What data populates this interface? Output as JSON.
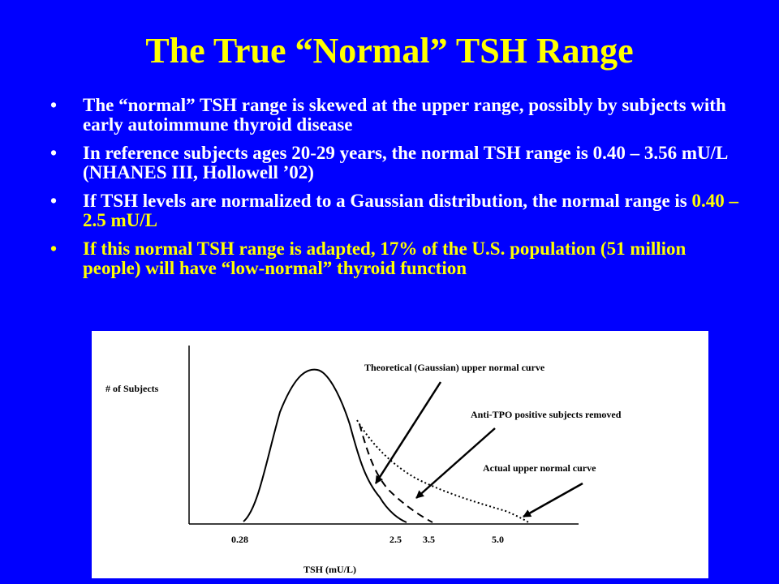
{
  "slide": {
    "title": "The True “Normal” TSH Range",
    "bullet_glyph": "•",
    "bullets": [
      {
        "text": "The “normal” TSH range is skewed at the upper range, possibly by subjects with early autoimmune thyroid disease"
      },
      {
        "text": "In reference subjects ages 20-29 years, the normal TSH range is 0.40 – 3.56 mU/L (NHANES III, Hollowell ’02)"
      },
      {
        "text_before": "If TSH levels are normalized to a Gaussian distribution, the normal range is ",
        "highlight": "0.40 – 2.5 mU/L"
      },
      {
        "text": "If this normal TSH range is adapted, 17% of the U.S. population (51 million people) will  have “low-normal” thyroid function"
      }
    ],
    "colors": {
      "background": "#0000ff",
      "title": "#ffff00",
      "text": "#ffffff",
      "highlight": "#ffff00"
    }
  },
  "figure": {
    "y_axis_label": "# of Subjects",
    "x_axis_label": "TSH (mU/L)",
    "x_ticks": [
      "0.28",
      "2.5",
      "3.5",
      "5.0"
    ],
    "annotations": {
      "gaussian": "Theoretical (Gaussian) upper normal curve",
      "anti_tpo": "Anti-TPO positive subjects removed",
      "actual": "Actual upper normal curve"
    }
  }
}
